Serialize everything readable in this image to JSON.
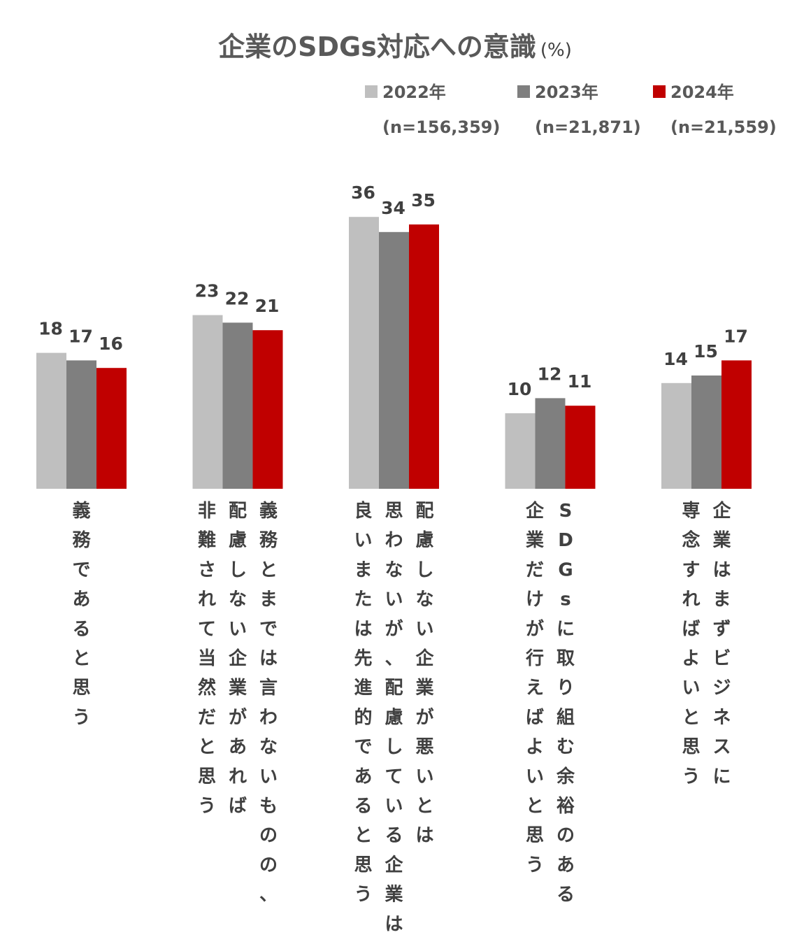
{
  "chart_data": {
    "type": "bar",
    "title": "企業のSDGs対応への意識",
    "unit": "(%)",
    "categories": [
      {
        "lines": [
          "義務であると思う"
        ]
      },
      {
        "lines": [
          "義務とまでは言わないものの、",
          "配慮しない企業があれば",
          "非難されて当然だと思う"
        ]
      },
      {
        "lines": [
          "配慮しない企業が悪いとは",
          "思わないが、配慮している企業は",
          "良いまたは先進的であると思う"
        ]
      },
      {
        "lines": [
          "SDGsに取り組む余裕のある",
          "企業だけが行えばよいと思う"
        ]
      },
      {
        "lines": [
          "企業はまずビジネスに",
          "専念すればよいと思う"
        ]
      }
    ],
    "series": [
      {
        "name": "2022年",
        "n": "(n=156,359)",
        "color": "#bfbfbf",
        "values": [
          18,
          23,
          36,
          10,
          14
        ]
      },
      {
        "name": "2023年",
        "n": "(n=21,871)",
        "color": "#7f7f7f",
        "values": [
          17,
          22,
          34,
          12,
          15
        ]
      },
      {
        "name": "2024年",
        "n": "(n=21,559)",
        "color": "#c00000",
        "values": [
          16,
          21,
          35,
          11,
          17
        ]
      }
    ],
    "ylim": [
      0,
      40
    ],
    "grid": false,
    "legend": "top-right"
  }
}
